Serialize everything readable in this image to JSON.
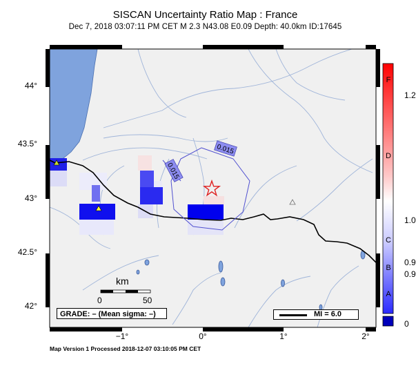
{
  "header": {
    "title": "SISCAN Uncertainty Ratio Map : France",
    "subtitle": "Dec  7, 2018 03:07:11 PM CET   M 2.3    N43.08 E0.09   Depth: 40.0km   ID:17645"
  },
  "axes": {
    "lat_ticks": [
      {
        "value": 44.0,
        "label": "44°"
      },
      {
        "value": 43.5,
        "label": "43.5°"
      },
      {
        "value": 43.0,
        "label": "43°"
      },
      {
        "value": 42.5,
        "label": "42.5°"
      },
      {
        "value": 42.0,
        "label": "42°"
      }
    ],
    "lon_ticks": [
      {
        "value": -1,
        "label": "−1°"
      },
      {
        "value": 0,
        "label": "0°"
      },
      {
        "value": 1,
        "label": "1°"
      },
      {
        "value": 2,
        "label": "2°"
      }
    ],
    "lon_range": [
      -1.9,
      2.1
    ],
    "lat_range": [
      41.8,
      44.4
    ]
  },
  "epicenter": {
    "lat": 43.08,
    "lon": 0.09,
    "marker": "star-icon",
    "color": "#e02020"
  },
  "contours": [
    {
      "label": "0.015"
    },
    {
      "label": "0.015"
    }
  ],
  "scale_bar": {
    "title": "km",
    "left_label": "0",
    "right_label": "50"
  },
  "grade": {
    "text": "GRADE: – (Mean sigma: –)"
  },
  "mi_legend": {
    "text": "MI = 6.0"
  },
  "colorbar": {
    "letters": [
      "F",
      "D",
      "C",
      "B",
      "A"
    ],
    "values": [
      "1.2",
      "1.0",
      "0.9",
      "0.9",
      "0"
    ],
    "colors": {
      "top": "#ff0000",
      "mid": "#ffffff",
      "bottom": "#0000ff",
      "below": "#0000bb"
    }
  },
  "footer": "Map Version 1 Processed 2018-12-07 03:10:05 PM CET"
}
